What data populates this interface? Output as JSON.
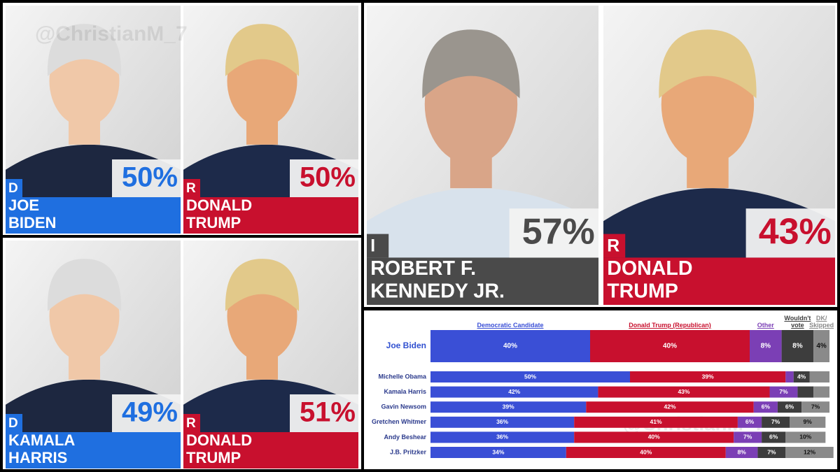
{
  "watermark": "@ChristianM_7",
  "matchups": [
    {
      "candidates": [
        {
          "party": "D",
          "name_lines": [
            "JOE",
            "BIDEN"
          ],
          "share": "50%"
        },
        {
          "party": "R",
          "name_lines": [
            "DONALD",
            "TRUMP"
          ],
          "share": "50%"
        }
      ]
    },
    {
      "candidates": [
        {
          "party": "D",
          "name_lines": [
            "KAMALA",
            "HARRIS"
          ],
          "share": "49%"
        },
        {
          "party": "R",
          "name_lines": [
            "DONALD",
            "TRUMP"
          ],
          "share": "51%"
        }
      ]
    },
    {
      "candidates": [
        {
          "party": "I",
          "name_lines": [
            "ROBERT F.",
            "KENNEDY JR."
          ],
          "share": "57%"
        },
        {
          "party": "R",
          "name_lines": [
            "DONALD",
            "TRUMP"
          ],
          "share": "43%"
        }
      ]
    }
  ],
  "chart_data": {
    "type": "stacked-bar",
    "orientation": "horizontal",
    "categories": [
      "Joe Biden",
      "Michelle Obama",
      "Kamala Harris",
      "Gavin Newsom",
      "Gretchen Whitmer",
      "Andy Beshear",
      "J.B. Pritzker"
    ],
    "xlim": [
      0,
      100
    ],
    "series": [
      {
        "name": "Democratic Candidate",
        "color": "#3a4fd6",
        "values": [
          40,
          50,
          42,
          39,
          36,
          36,
          34
        ],
        "value_labels": [
          "40%",
          "50%",
          "42%",
          "39%",
          "36%",
          "36%",
          "34%"
        ]
      },
      {
        "name": "Donald Trump (Republican)",
        "color": "#c8102e",
        "values": [
          40,
          39,
          43,
          42,
          41,
          40,
          40
        ],
        "value_labels": [
          "40%",
          "39%",
          "43%",
          "42%",
          "41%",
          "40%",
          "40%"
        ]
      },
      {
        "name": "Other",
        "color": "#7b3fb5",
        "values": [
          8,
          2,
          7,
          6,
          6,
          7,
          8
        ],
        "value_labels": [
          "8%",
          null,
          "7%",
          "6%",
          "6%",
          "7%",
          "8%"
        ]
      },
      {
        "name": "Wouldn't vote",
        "color": "#3d3d3d",
        "values": [
          8,
          4,
          4,
          6,
          7,
          6,
          7
        ],
        "value_labels": [
          "8%",
          "4%",
          null,
          "6%",
          "7%",
          "6%",
          "7%"
        ]
      },
      {
        "name": "DK/ Skipped",
        "color": "#8a8a8a",
        "values": [
          4,
          5,
          4,
          7,
          9,
          10,
          12
        ],
        "value_labels": [
          "4%",
          null,
          null,
          "7%",
          "9%",
          "10%",
          "12%"
        ]
      }
    ]
  }
}
